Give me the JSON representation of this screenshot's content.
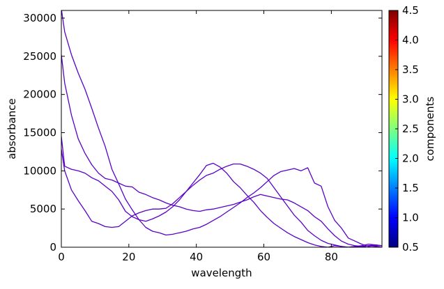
{
  "chart_data": {
    "type": "line",
    "title": "",
    "xlabel": "wavelength",
    "ylabel": "absorbance",
    "xlim": [
      0,
      95
    ],
    "ylim": [
      0,
      31000
    ],
    "x_ticks": [
      "0",
      "20",
      "40",
      "60",
      "80"
    ],
    "y_ticks": [
      "0",
      "5000",
      "10000",
      "15000",
      "20000",
      "25000",
      "30000"
    ],
    "grid": false,
    "line_color": "#5a00c8",
    "series": [
      {
        "x": [
          0,
          1,
          3,
          5,
          7,
          9,
          11,
          13,
          15,
          17,
          19,
          21,
          23,
          25,
          27,
          29,
          31,
          33,
          35,
          37,
          39,
          41,
          43,
          45,
          47,
          49,
          51,
          53,
          55,
          57,
          59,
          61,
          63,
          65,
          67,
          69,
          71,
          73,
          75,
          77,
          79,
          81,
          83,
          85,
          87,
          89,
          91,
          93,
          95
        ],
        "values": [
          31200,
          28200,
          25200,
          22800,
          20700,
          18200,
          15600,
          13200,
          10200,
          8300,
          6300,
          4900,
          3600,
          2600,
          2100,
          1900,
          1600,
          1700,
          1900,
          2100,
          2400,
          2600,
          3000,
          3500,
          4000,
          4600,
          5200,
          5800,
          6500,
          7100,
          7800,
          8600,
          9400,
          9900,
          10100,
          10300,
          10000,
          10400,
          8400,
          8000,
          5300,
          3500,
          2500,
          1200,
          800,
          400,
          100,
          200,
          200
        ]
      },
      {
        "x": [
          0,
          1,
          3,
          5,
          7,
          9,
          11,
          13,
          15,
          17,
          19,
          21,
          23,
          25,
          27,
          29,
          31,
          33,
          35,
          37,
          39,
          41,
          43,
          45,
          47,
          49,
          51,
          53,
          55,
          57,
          59,
          61,
          63,
          65,
          67,
          69,
          71,
          73,
          75,
          77,
          79,
          81,
          83,
          85,
          87,
          89,
          91,
          93,
          95
        ],
        "values": [
          25200,
          21500,
          17300,
          14200,
          12300,
          10800,
          9700,
          9000,
          8800,
          8400,
          8000,
          7900,
          7200,
          6900,
          6500,
          6200,
          5800,
          5500,
          5300,
          5000,
          4800,
          4700,
          4900,
          5000,
          5200,
          5400,
          5600,
          5900,
          6200,
          6600,
          6900,
          6700,
          6500,
          6300,
          6200,
          5800,
          5300,
          4800,
          4000,
          3400,
          2400,
          1500,
          800,
          400,
          200,
          100,
          200,
          300,
          200
        ]
      },
      {
        "x": [
          0,
          1,
          3,
          5,
          7,
          9,
          11,
          13,
          15,
          17,
          19,
          21,
          23,
          25,
          27,
          29,
          31,
          33,
          35,
          37,
          39,
          41,
          43,
          45,
          47,
          49,
          51,
          53,
          55,
          57,
          59,
          61,
          63,
          65,
          67,
          69,
          71,
          73,
          75,
          77,
          79,
          81,
          83,
          85,
          87,
          89,
          91,
          93,
          95
        ],
        "values": [
          14500,
          10600,
          10200,
          10000,
          9700,
          9100,
          8700,
          8000,
          7300,
          6200,
          4700,
          4000,
          3600,
          3400,
          3700,
          4100,
          4600,
          5300,
          6200,
          7300,
          8400,
          9500,
          10700,
          11000,
          10500,
          9700,
          8600,
          7800,
          6800,
          5900,
          4800,
          3900,
          3100,
          2500,
          1900,
          1400,
          1000,
          600,
          300,
          100,
          0,
          200,
          100,
          0,
          100,
          0,
          200,
          100,
          0
        ]
      },
      {
        "x": [
          0,
          1,
          3,
          5,
          7,
          9,
          11,
          13,
          15,
          17,
          19,
          21,
          23,
          25,
          27,
          29,
          31,
          33,
          35,
          37,
          39,
          41,
          43,
          45,
          47,
          49,
          51,
          53,
          55,
          57,
          59,
          61,
          63,
          65,
          67,
          69,
          71,
          73,
          75,
          77,
          79,
          81,
          83,
          85,
          87,
          89,
          91,
          93,
          95
        ],
        "values": [
          12800,
          10000,
          7500,
          6100,
          4800,
          3400,
          3100,
          2700,
          2600,
          2700,
          3400,
          4100,
          4500,
          4800,
          5000,
          5000,
          5100,
          5700,
          6500,
          7300,
          8100,
          8800,
          9400,
          9700,
          10200,
          10600,
          10900,
          10900,
          10600,
          10200,
          9700,
          9000,
          7800,
          6600,
          5400,
          4200,
          3300,
          2200,
          1500,
          900,
          500,
          300,
          100,
          0,
          100,
          200,
          400,
          300,
          200
        ]
      }
    ],
    "colorbar": {
      "label": "components",
      "ticks": [
        "0.5",
        "1.0",
        "1.5",
        "2.0",
        "2.5",
        "3.0",
        "3.5",
        "4.0",
        "4.5"
      ],
      "range": [
        0.5,
        4.5
      ],
      "colormap": "jet",
      "stops": [
        "#00007f",
        "#0000ff",
        "#007fff",
        "#00ffff",
        "#7fff7f",
        "#ffff00",
        "#ff7f00",
        "#ff0000",
        "#7f0000"
      ]
    }
  }
}
